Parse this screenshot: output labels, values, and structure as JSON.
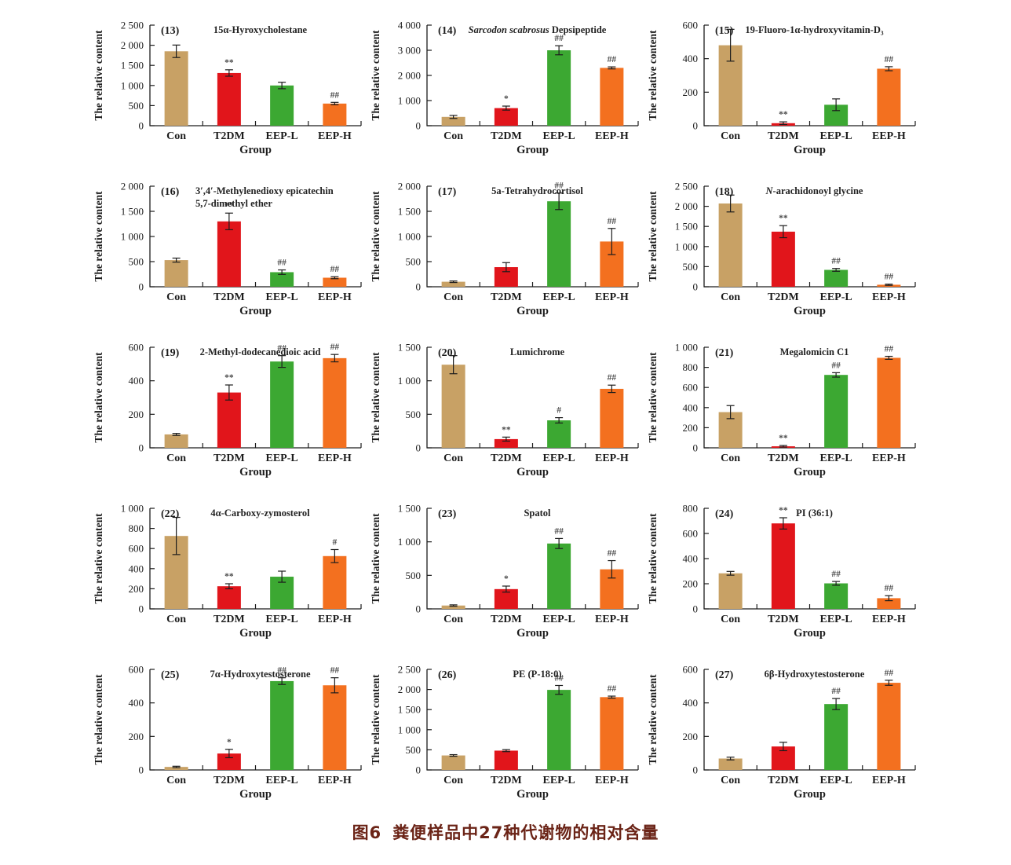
{
  "figure": {
    "caption_label": "图6",
    "caption_text": "粪便样品中27种代谢物的相对含量",
    "caption_color": "#6b2417"
  },
  "style": {
    "bar_colors": [
      "#C8A165",
      "#E1151B",
      "#3CA832",
      "#F3701F"
    ],
    "axis_color": "#1c1c1c",
    "sig_color": "#4a4a4a",
    "background": "#ffffff"
  },
  "chart_data": [
    {
      "type": "bar",
      "panel": "(13)",
      "title": "15α-Hyroxycholestane",
      "ylabel": "The relative content",
      "xlabel": "Group",
      "categories": [
        "Con",
        "T2DM",
        "EEP-L",
        "EEP-H"
      ],
      "values": [
        1850,
        1310,
        1000,
        550
      ],
      "errors": [
        155,
        80,
        80,
        30
      ],
      "sig": [
        "",
        "**",
        "",
        "##"
      ],
      "ylim": [
        0,
        2500
      ],
      "ytick_step": 500
    },
    {
      "type": "bar",
      "panel": "(14)",
      "title_italic": "Sarcodon scabrosus",
      "title_rest": " Depsipeptide",
      "ylabel": "The relative content",
      "xlabel": "Group",
      "categories": [
        "Con",
        "T2DM",
        "EEP-L",
        "EEP-H"
      ],
      "values": [
        350,
        700,
        3000,
        2300
      ],
      "errors": [
        60,
        80,
        180,
        40
      ],
      "sig": [
        "",
        "*",
        "##",
        "##"
      ],
      "ylim": [
        0,
        4000
      ],
      "ytick_step": 1000
    },
    {
      "type": "bar",
      "panel": "(15)",
      "title": "19-Fluoro-1α-hydroxyvitamin-D₃",
      "ylabel": "The relative content",
      "xlabel": "Group",
      "categories": [
        "Con",
        "T2DM",
        "EEP-L",
        "EEP-H"
      ],
      "values": [
        480,
        15,
        125,
        340
      ],
      "errors": [
        95,
        8,
        35,
        12
      ],
      "sig": [
        "",
        "**",
        "",
        "##"
      ],
      "ylim": [
        0,
        600
      ],
      "ytick_step": 200
    },
    {
      "type": "bar",
      "panel": "(16)",
      "title": "3′,4′-Methylenedioxy epicatechin",
      "title_line2": "5,7-dimethyl ether",
      "ylabel": "The relative content",
      "xlabel": "Group",
      "categories": [
        "Con",
        "T2DM",
        "EEP-L",
        "EEP-H"
      ],
      "values": [
        530,
        1300,
        290,
        180
      ],
      "errors": [
        40,
        165,
        45,
        20
      ],
      "sig": [
        "",
        "**",
        "##",
        "##"
      ],
      "ylim": [
        0,
        2000
      ],
      "ytick_step": 500
    },
    {
      "type": "bar",
      "panel": "(17)",
      "title": "5a-Tetrahydrocortisol",
      "ylabel": "The relative content",
      "xlabel": "Group",
      "categories": [
        "Con",
        "T2DM",
        "EEP-L",
        "EEP-H"
      ],
      "values": [
        100,
        390,
        1700,
        900
      ],
      "errors": [
        15,
        90,
        165,
        260
      ],
      "sig": [
        "",
        "",
        "##",
        "##"
      ],
      "ylim": [
        0,
        2000
      ],
      "ytick_step": 500
    },
    {
      "type": "bar",
      "panel": "(18)",
      "title_italic": "N",
      "title_rest": "-arachidonoyl glycine",
      "ylabel": "The relative content",
      "xlabel": "Group",
      "categories": [
        "Con",
        "T2DM",
        "EEP-L",
        "EEP-H"
      ],
      "values": [
        2070,
        1370,
        420,
        50
      ],
      "errors": [
        210,
        150,
        35,
        15
      ],
      "sig": [
        "",
        "**",
        "##",
        "##"
      ],
      "ylim": [
        0,
        2500
      ],
      "ytick_step": 500
    },
    {
      "type": "bar",
      "panel": "(19)",
      "title": "2-Methyl-dodecanedioic acid",
      "ylabel": "The relative content",
      "xlabel": "Group",
      "categories": [
        "Con",
        "T2DM",
        "EEP-L",
        "EEP-H"
      ],
      "values": [
        80,
        330,
        515,
        535
      ],
      "errors": [
        6,
        45,
        35,
        22
      ],
      "sig": [
        "",
        "**",
        "##",
        "##"
      ],
      "ylim": [
        0,
        600
      ],
      "ytick_step": 200
    },
    {
      "type": "bar",
      "panel": "(20)",
      "title": "Lumichrome",
      "ylabel": "The relative content",
      "xlabel": "Group",
      "categories": [
        "Con",
        "T2DM",
        "EEP-L",
        "EEP-H"
      ],
      "values": [
        1240,
        130,
        410,
        880
      ],
      "errors": [
        135,
        30,
        40,
        55
      ],
      "sig": [
        "",
        "**",
        "#",
        "##"
      ],
      "ylim": [
        0,
        1500
      ],
      "ytick_step": 500
    },
    {
      "type": "bar",
      "panel": "(21)",
      "title": "Megalomicin C1",
      "ylabel": "The relative content",
      "xlabel": "Group",
      "categories": [
        "Con",
        "T2DM",
        "EEP-L",
        "EEP-H"
      ],
      "values": [
        355,
        15,
        725,
        895
      ],
      "errors": [
        65,
        8,
        22,
        15
      ],
      "sig": [
        "",
        "**",
        "##",
        "##"
      ],
      "ylim": [
        0,
        1000
      ],
      "ytick_step": 200
    },
    {
      "type": "bar",
      "panel": "(22)",
      "title": "4α-Carboxy-zymosterol",
      "ylabel": "The relative content",
      "xlabel": "Group",
      "categories": [
        "Con",
        "T2DM",
        "EEP-L",
        "EEP-H"
      ],
      "values": [
        725,
        225,
        320,
        525
      ],
      "errors": [
        185,
        25,
        55,
        65
      ],
      "sig": [
        "",
        "**",
        "",
        "#"
      ],
      "ylim": [
        0,
        1000
      ],
      "ytick_step": 200
    },
    {
      "type": "bar",
      "panel": "(23)",
      "title": "Spatol",
      "ylabel": "The relative content",
      "xlabel": "Group",
      "categories": [
        "Con",
        "T2DM",
        "EEP-L",
        "EEP-H"
      ],
      "values": [
        50,
        295,
        975,
        590
      ],
      "errors": [
        10,
        45,
        75,
        130
      ],
      "sig": [
        "",
        "*",
        "##",
        "##"
      ],
      "ylim": [
        0,
        1500
      ],
      "ytick_step": 500
    },
    {
      "type": "bar",
      "panel": "(24)",
      "title": "PI (36:1)",
      "ylabel": "The relative content",
      "xlabel": "Group",
      "categories": [
        "Con",
        "T2DM",
        "EEP-L",
        "EEP-H"
      ],
      "values": [
        283,
        680,
        203,
        85
      ],
      "errors": [
        15,
        45,
        15,
        20
      ],
      "sig": [
        "",
        "**",
        "##",
        "##"
      ],
      "ylim": [
        0,
        800
      ],
      "ytick_step": 200
    },
    {
      "type": "bar",
      "panel": "(25)",
      "title": "7α-Hydroxytestosterone",
      "ylabel": "The relative content",
      "xlabel": "Group",
      "categories": [
        "Con",
        "T2DM",
        "EEP-L",
        "EEP-H"
      ],
      "values": [
        18,
        98,
        530,
        505
      ],
      "errors": [
        4,
        25,
        20,
        45
      ],
      "sig": [
        "",
        "*",
        "##",
        "##"
      ],
      "ylim": [
        0,
        600
      ],
      "ytick_step": 200
    },
    {
      "type": "bar",
      "panel": "(26)",
      "title": "PE (P-18:0)",
      "ylabel": "The relative content",
      "xlabel": "Group",
      "categories": [
        "Con",
        "T2DM",
        "EEP-L",
        "EEP-H"
      ],
      "values": [
        360,
        480,
        1990,
        1810
      ],
      "errors": [
        20,
        25,
        110,
        25
      ],
      "sig": [
        "",
        "",
        "##",
        "##"
      ],
      "ylim": [
        0,
        2500
      ],
      "ytick_step": 500
    },
    {
      "type": "bar",
      "panel": "(27)",
      "title": "6β-Hydroxytestosterone",
      "ylabel": "The relative content",
      "xlabel": "Group",
      "categories": [
        "Con",
        "T2DM",
        "EEP-L",
        "EEP-H"
      ],
      "values": [
        68,
        140,
        393,
        520
      ],
      "errors": [
        8,
        25,
        33,
        15
      ],
      "sig": [
        "",
        "",
        "##",
        "##"
      ],
      "ylim": [
        0,
        600
      ],
      "ytick_step": 200
    }
  ]
}
